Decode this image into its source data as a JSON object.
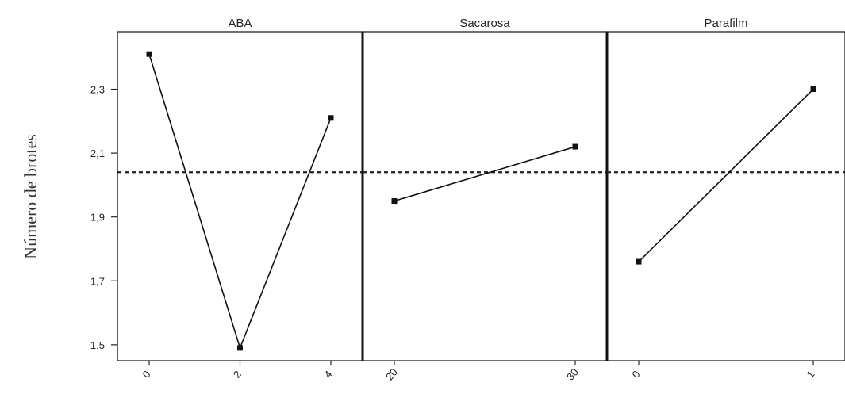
{
  "chart_data": {
    "type": "line",
    "ylabel": "Número de brotes",
    "ylim": [
      1.45,
      2.48
    ],
    "yticks": [
      1.5,
      1.7,
      1.9,
      2.1,
      2.3
    ],
    "ytick_labels": [
      "1,5",
      "1,7",
      "1,9",
      "2,1",
      "2,3"
    ],
    "reference_line": 2.04,
    "grid": false,
    "legend": "none",
    "panels": [
      {
        "title": "ABA",
        "categories": [
          "0",
          "2",
          "4"
        ],
        "values": [
          2.41,
          1.49,
          2.21
        ]
      },
      {
        "title": "Sacarosa",
        "categories": [
          "20",
          "30"
        ],
        "values": [
          1.95,
          2.12
        ]
      },
      {
        "title": "Parafilm",
        "categories": [
          "0",
          "1"
        ],
        "values": [
          1.76,
          2.3
        ]
      }
    ]
  }
}
